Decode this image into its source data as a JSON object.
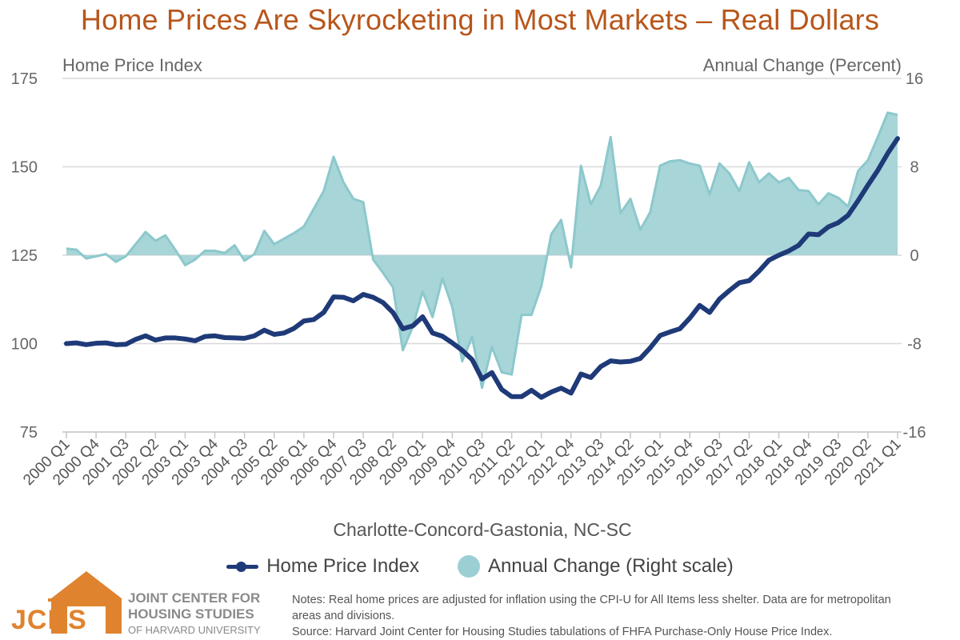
{
  "title": "Home Prices Are Skyrocketing in Most Markets – Real Dollars",
  "left_axis_title": "Home Price Index",
  "right_axis_title": "Annual Change (Percent)",
  "left_ticks": [
    "175",
    "150",
    "125",
    "100",
    "75"
  ],
  "right_ticks": [
    "16",
    "8",
    "0",
    "-8",
    "-16"
  ],
  "x_tick_labels": [
    "2000 Q1",
    "2000 Q4",
    "2001 Q3",
    "2002 Q2",
    "2003 Q1",
    "2003 Q4",
    "2004 Q3",
    "2005 Q2",
    "2006 Q1",
    "2006 Q4",
    "2007 Q3",
    "2008 Q2",
    "2009 Q1",
    "2009 Q4",
    "2010 Q3",
    "2011 Q2",
    "2012 Q1",
    "2012 Q4",
    "2013 Q3",
    "2014 Q2",
    "2015 Q1",
    "2015 Q4",
    "2016 Q3",
    "2017 Q2",
    "2018 Q1",
    "2018 Q4",
    "2019 Q3",
    "2020 Q2",
    "2021 Q1"
  ],
  "region_label": "Charlotte-Concord-Gastonia, NC-SC",
  "legend": {
    "line_label": "Home Price Index",
    "area_label": "Annual Change (Right scale)"
  },
  "colors": {
    "title": "#b8561b",
    "index_line": "#1f3a78",
    "change_area_fill": "#a8d5d8",
    "change_area_stroke": "#8cc8cc",
    "logo": "#e0832f"
  },
  "logo": {
    "abbr": "JCHS",
    "line1": "JOINT CENTER FOR",
    "line2": "HOUSING STUDIES",
    "line3": "OF HARVARD UNIVERSITY"
  },
  "notes": {
    "line1": "Notes: Real home prices are adjusted for inflation using the CPI-U for All Items less shelter. Data are for metropolitan",
    "line2": "areas and divisions.",
    "line3": "Source: Harvard Joint Center for Housing Studies tabulations of FHFA Purchase-Only House Price Index."
  },
  "chart_data": {
    "type": "line",
    "title": "Home Prices Are Skyrocketing in Most Markets – Real Dollars",
    "xlabel": "Charlotte-Concord-Gastonia, NC-SC",
    "ylabel": "Home Price Index",
    "y2label": "Annual Change (Percent)",
    "ylim": [
      75,
      175
    ],
    "y2lim": [
      -16,
      16
    ],
    "grid": true,
    "legend_position": "bottom",
    "x_start": "2000 Q1",
    "frequency": "quarterly",
    "series": [
      {
        "name": "Home Price Index",
        "axis": "left",
        "type": "line",
        "values": [
          100.0,
          100.2,
          99.7,
          100.1,
          100.2,
          99.7,
          99.8,
          101.2,
          102.2,
          101.0,
          101.6,
          101.6,
          101.3,
          100.8,
          102.0,
          102.2,
          101.7,
          101.6,
          101.5,
          102.2,
          103.8,
          102.6,
          103.0,
          104.3,
          106.4,
          106.8,
          108.8,
          113.2,
          113.1,
          112.1,
          113.9,
          113.1,
          111.6,
          108.8,
          104.2,
          105.0,
          107.6,
          103.0,
          102.1,
          100.2,
          98.1,
          95.5,
          90.0,
          91.8,
          87.0,
          85.0,
          85.0,
          86.8,
          84.8,
          86.3,
          87.4,
          86.0,
          91.4,
          90.4,
          93.5,
          95.1,
          94.8,
          95.0,
          95.8,
          98.8,
          102.3,
          103.3,
          104.2,
          107.2,
          110.8,
          108.8,
          112.6,
          115.0,
          117.2,
          117.8,
          120.5,
          123.6,
          125.0,
          126.2,
          127.8,
          131.0,
          130.8,
          133.0,
          134.2,
          136.3,
          140.4,
          144.8,
          149.0,
          153.8,
          158.0
        ]
      },
      {
        "name": "Annual Change (Right scale)",
        "axis": "right",
        "type": "area",
        "values": [
          0.6,
          0.5,
          -0.3,
          -0.1,
          0.1,
          -0.6,
          -0.1,
          1.0,
          2.1,
          1.3,
          1.8,
          0.5,
          -0.9,
          -0.4,
          0.4,
          0.4,
          0.2,
          0.9,
          -0.5,
          0.1,
          2.2,
          1.0,
          1.5,
          2.0,
          2.6,
          4.2,
          5.8,
          8.9,
          6.6,
          5.1,
          4.8,
          -0.4,
          -1.6,
          -2.9,
          -8.6,
          -6.5,
          -3.3,
          -5.6,
          -2.1,
          -4.7,
          -9.6,
          -7.4,
          -12.0,
          -8.3,
          -10.6,
          -10.8,
          -5.4,
          -5.4,
          -2.8,
          1.9,
          3.2,
          -1.1,
          8.1,
          4.6,
          6.3,
          10.7,
          3.8,
          5.1,
          2.3,
          3.9,
          8.1,
          8.5,
          8.6,
          8.3,
          8.1,
          5.5,
          8.3,
          7.4,
          5.8,
          8.4,
          6.6,
          7.4,
          6.6,
          7.0,
          5.9,
          5.8,
          4.6,
          5.6,
          5.2,
          4.4,
          7.6,
          8.6,
          10.7,
          12.9,
          12.7
        ]
      }
    ]
  }
}
